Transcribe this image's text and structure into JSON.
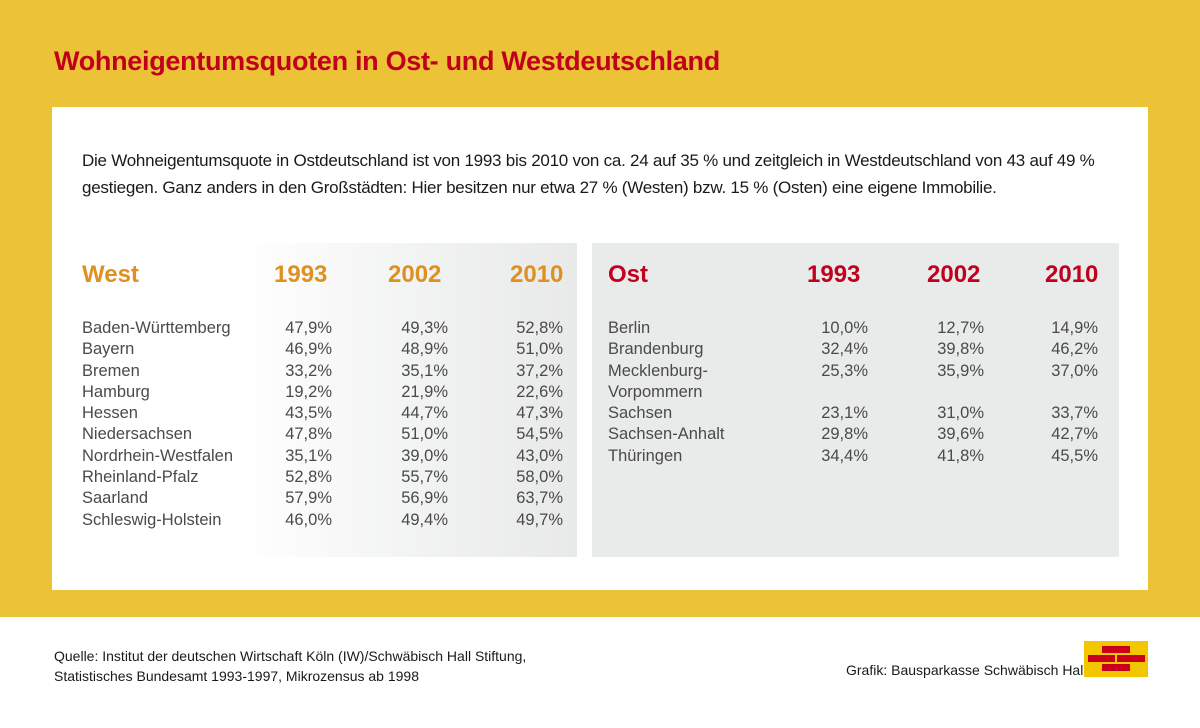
{
  "title": "Wohneigentumsquoten in Ost- und Westdeutschland",
  "intro": "Die Wohneigentumsquote in Ostdeutschland ist von 1993 bis 2010 von ca. 24 auf 35 % und zeitgleich in Westdeutschland von 43 auf 49 % gestiegen. Ganz anders in den Großstädten: Hier besitzen nur etwa 27 % (Westen) bzw. 15 % (Osten) eine eigene Immobilie.",
  "colors": {
    "background": "#ecc236",
    "title": "#c0001d",
    "west_header": "#e09020",
    "ost_header": "#c0001d",
    "logo_bg": "#f2c700",
    "logo_bricks": "#c8001e"
  },
  "chart_data": {
    "type": "table",
    "title": "Wohneigentumsquoten in Ost- und Westdeutschland",
    "unit": "%",
    "tables": [
      {
        "name": "West",
        "columns": [
          "West",
          "1993",
          "2002",
          "2010"
        ],
        "rows": [
          {
            "region": "Baden-Württemberg",
            "values": [
              "47,9 %",
              "49,3 %",
              "52,8 %"
            ]
          },
          {
            "region": "Bayern",
            "values": [
              "46,9 %",
              "48,9 %",
              "51,0 %"
            ]
          },
          {
            "region": "Bremen",
            "values": [
              "33,2 %",
              "35,1 %",
              "37,2 %"
            ]
          },
          {
            "region": "Hamburg",
            "values": [
              "19,2 %",
              "21,9 %",
              "22,6 %"
            ]
          },
          {
            "region": "Hessen",
            "values": [
              "43,5 %",
              "44,7 %",
              "47,3 %"
            ]
          },
          {
            "region": "Niedersachsen",
            "values": [
              "47,8 %",
              "51,0 %",
              "54,5 %"
            ]
          },
          {
            "region": "Nordrhein-Westfalen",
            "values": [
              "35,1 %",
              "39,0 %",
              "43,0 %"
            ]
          },
          {
            "region": "Rheinland-Pfalz",
            "values": [
              "52,8 %",
              "55,7 %",
              "58,0 %"
            ]
          },
          {
            "region": "Saarland",
            "values": [
              "57,9 %",
              "56,9 %",
              "63,7 %"
            ]
          },
          {
            "region": "Schleswig-Holstein",
            "values": [
              "46,0 %",
              "49,4 %",
              "49,7 %"
            ]
          }
        ]
      },
      {
        "name": "Ost",
        "columns": [
          "Ost",
          "1993",
          "2002",
          "2010"
        ],
        "rows": [
          {
            "region": "Berlin",
            "values": [
              "10,0 %",
              "12,7 %",
              "14,9 %"
            ]
          },
          {
            "region": "Brandenburg",
            "values": [
              "32,4 %",
              "39,8 %",
              "46,2 %"
            ]
          },
          {
            "region": "Mecklenburg-",
            "region_cont": "Vorpommern",
            "values": [
              "25,3 %",
              "35,9 %",
              "37,0 %"
            ]
          },
          {
            "region": "Sachsen",
            "values": [
              "23,1 %",
              "31,0 %",
              "33,7 %"
            ]
          },
          {
            "region": "Sachsen-Anhalt",
            "values": [
              "29,8 %",
              "39,6 %",
              "42,7 %"
            ]
          },
          {
            "region": "Thüringen",
            "values": [
              "34,4 %",
              "41,8 %",
              "45,5 %"
            ]
          }
        ]
      }
    ]
  },
  "footer": {
    "source_line1": "Quelle: Institut der deutschen Wirtschaft Köln (IW)/Schwäbisch Hall Stiftung,",
    "source_line2": "Statistisches Bundesamt 1993-1997, Mikrozensus ab 1998",
    "credit": "Grafik: Bausparkasse Schwäbisch Hall",
    "logo_icon": "brick-wall-logo-icon"
  }
}
